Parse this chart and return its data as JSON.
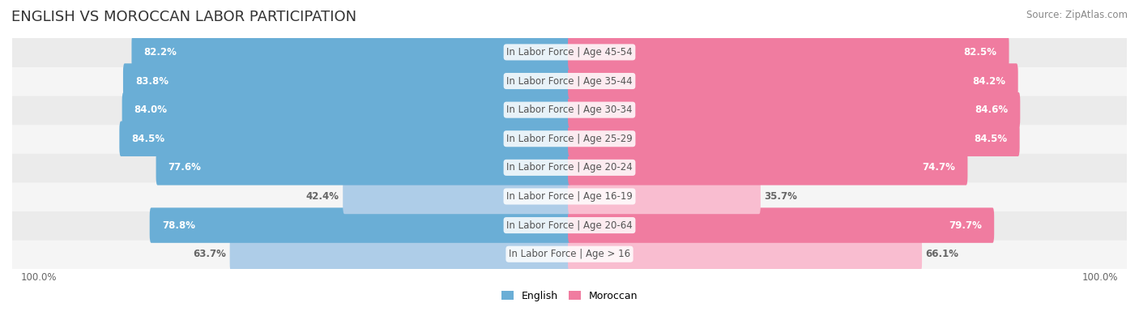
{
  "title": "ENGLISH VS MOROCCAN LABOR PARTICIPATION",
  "source": "Source: ZipAtlas.com",
  "categories": [
    "In Labor Force | Age > 16",
    "In Labor Force | Age 20-64",
    "In Labor Force | Age 16-19",
    "In Labor Force | Age 20-24",
    "In Labor Force | Age 25-29",
    "In Labor Force | Age 30-34",
    "In Labor Force | Age 35-44",
    "In Labor Force | Age 45-54"
  ],
  "english_values": [
    63.7,
    78.8,
    42.4,
    77.6,
    84.5,
    84.0,
    83.8,
    82.2
  ],
  "moroccan_values": [
    66.1,
    79.7,
    35.7,
    74.7,
    84.5,
    84.6,
    84.2,
    82.5
  ],
  "english_color": "#6aaed6",
  "english_color_light": "#aecde8",
  "moroccan_color": "#f07ca0",
  "moroccan_color_light": "#f9bdd0",
  "bar_bg_color": "#f0f0f0",
  "row_bg_odd": "#f5f5f5",
  "row_bg_even": "#ebebeb",
  "max_value": 100.0,
  "title_fontsize": 13,
  "label_fontsize": 8.5,
  "value_fontsize": 8.5,
  "legend_fontsize": 9,
  "source_fontsize": 8.5
}
